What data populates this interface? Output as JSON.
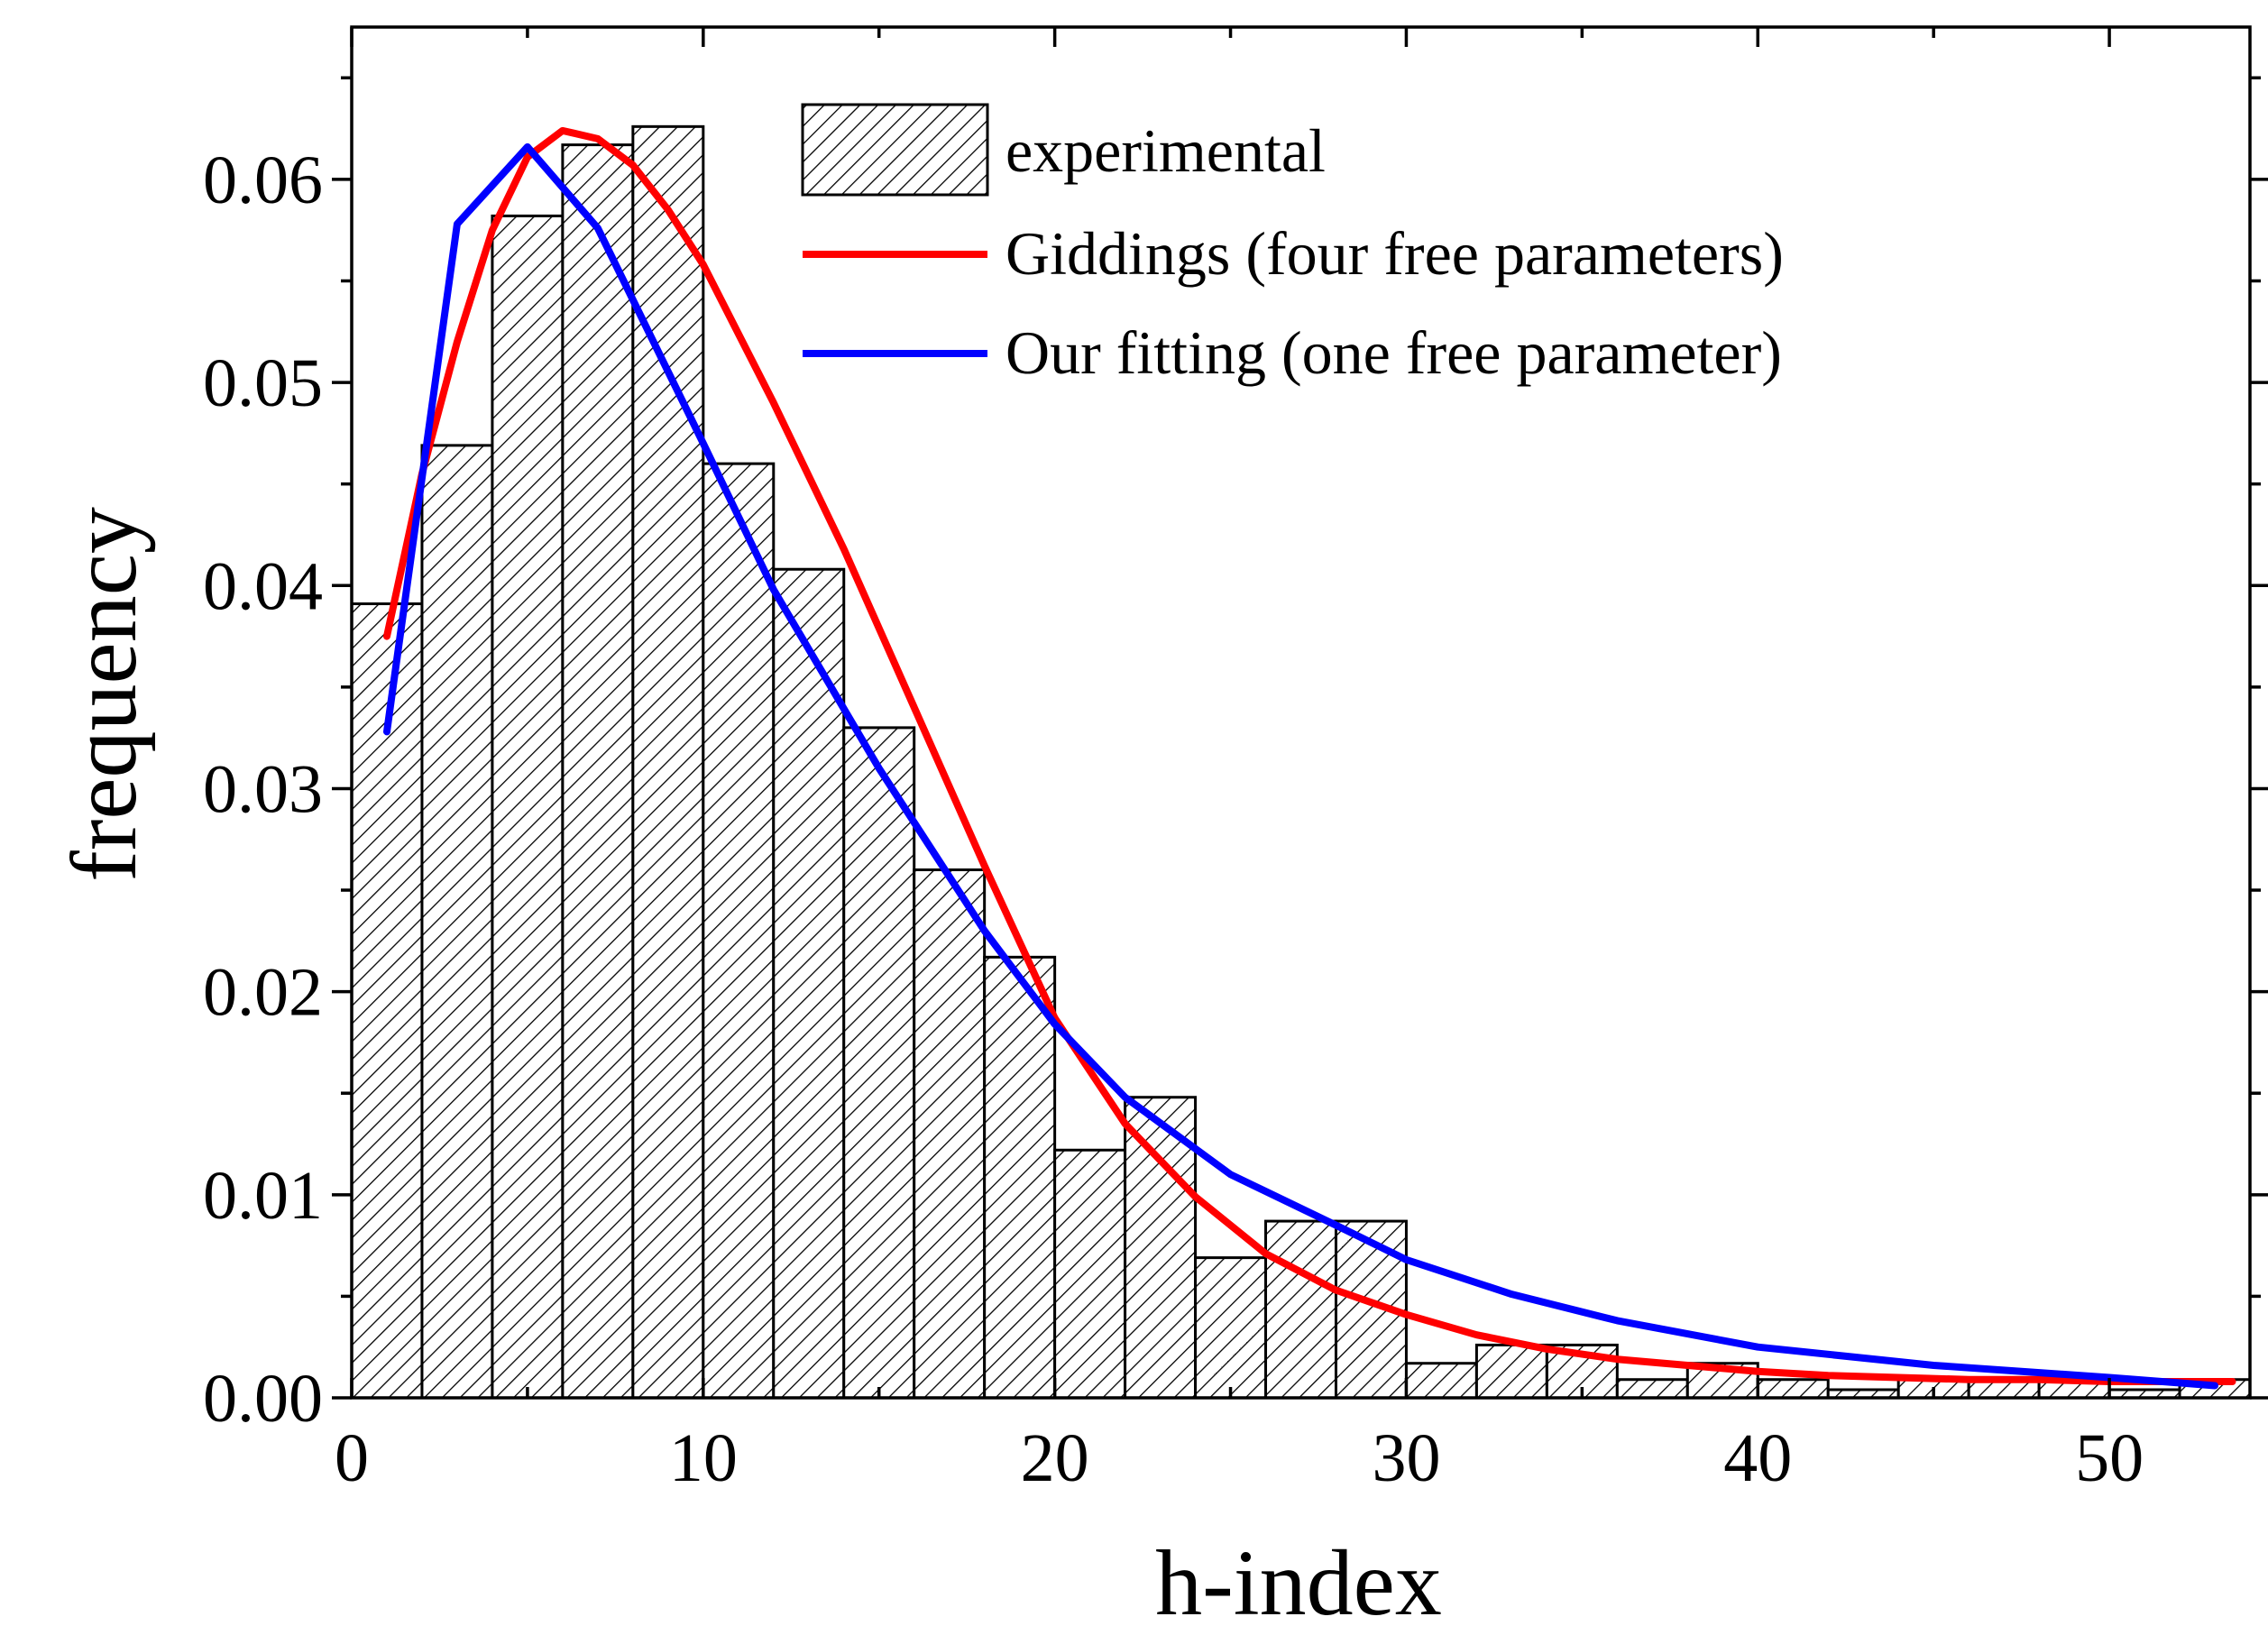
{
  "chart_data": {
    "type": "bar",
    "title": "",
    "xlabel": "h-index",
    "ylabel": "frequency",
    "xlim": [
      0,
      54
    ],
    "ylim": [
      0,
      0.0675
    ],
    "xticks": [
      0,
      10,
      20,
      30,
      40,
      50
    ],
    "xtick_labels": [
      "0",
      "10",
      "20",
      "30",
      "40",
      "50"
    ],
    "yticks": [
      0,
      0.01,
      0.02,
      0.03,
      0.04,
      0.05,
      0.06
    ],
    "ytick_labels": [
      "0.00",
      "0.01",
      "0.02",
      "0.03",
      "0.04",
      "0.05",
      "0.06"
    ],
    "grid": false,
    "legend_position": "top-right",
    "bin_width": 2,
    "bins": [
      {
        "x0": 0,
        "value": 0.0391
      },
      {
        "x0": 2,
        "value": 0.0469
      },
      {
        "x0": 4,
        "value": 0.0582
      },
      {
        "x0": 6,
        "value": 0.0617
      },
      {
        "x0": 8,
        "value": 0.0626
      },
      {
        "x0": 10,
        "value": 0.046
      },
      {
        "x0": 12,
        "value": 0.0408
      },
      {
        "x0": 14,
        "value": 0.033
      },
      {
        "x0": 16,
        "value": 0.026
      },
      {
        "x0": 18,
        "value": 0.0217
      },
      {
        "x0": 20,
        "value": 0.0122
      },
      {
        "x0": 22,
        "value": 0.0148
      },
      {
        "x0": 24,
        "value": 0.0069
      },
      {
        "x0": 26,
        "value": 0.0087
      },
      {
        "x0": 28,
        "value": 0.0087
      },
      {
        "x0": 30,
        "value": 0.0017
      },
      {
        "x0": 32,
        "value": 0.0026
      },
      {
        "x0": 34,
        "value": 0.0026
      },
      {
        "x0": 36,
        "value": 0.0009
      },
      {
        "x0": 38,
        "value": 0.0017
      },
      {
        "x0": 40,
        "value": 0.0009
      },
      {
        "x0": 42,
        "value": 0.0004
      },
      {
        "x0": 44,
        "value": 0.0009
      },
      {
        "x0": 46,
        "value": 0.0009
      },
      {
        "x0": 48,
        "value": 0.0009
      },
      {
        "x0": 50,
        "value": 0.0004
      },
      {
        "x0": 52,
        "value": 0.0009
      }
    ],
    "series": [
      {
        "name": "experimental",
        "kind": "histogram",
        "fill": "hatched"
      },
      {
        "name": "Giddings (four free parameters)",
        "kind": "line",
        "color": "#ff0000",
        "x": [
          1,
          2,
          3,
          4,
          5,
          6,
          7,
          8,
          9,
          10,
          12,
          14,
          16,
          18,
          20,
          22,
          24,
          26,
          28,
          30,
          32,
          34,
          36,
          38,
          40,
          42,
          44,
          46,
          48,
          50,
          52,
          53.5
        ],
        "y": [
          0.0375,
          0.0455,
          0.052,
          0.0575,
          0.0611,
          0.0624,
          0.062,
          0.0607,
          0.0585,
          0.0558,
          0.049,
          0.0418,
          0.034,
          0.0262,
          0.0187,
          0.0135,
          0.0099,
          0.0071,
          0.0053,
          0.0041,
          0.0031,
          0.0024,
          0.0019,
          0.0016,
          0.0013,
          0.0011,
          0.001,
          0.0009,
          0.0009,
          0.0008,
          0.0008,
          0.0008
        ]
      },
      {
        "name": "Our fitting (one free parameter)",
        "kind": "line",
        "color": "#0000ff",
        "x": [
          1,
          3,
          5,
          7,
          10,
          12,
          15,
          18,
          20,
          22,
          25,
          28,
          30,
          33,
          36,
          40,
          45,
          50,
          53
        ],
        "y": [
          0.0328,
          0.0578,
          0.0616,
          0.0576,
          0.047,
          0.0398,
          0.031,
          0.023,
          0.0184,
          0.0148,
          0.011,
          0.0085,
          0.0068,
          0.0051,
          0.0038,
          0.0025,
          0.0016,
          0.001,
          0.0006
        ]
      }
    ]
  }
}
